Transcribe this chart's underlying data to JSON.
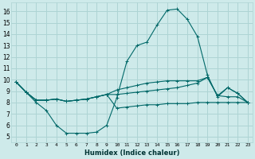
{
  "xlabel": "Humidex (Indice chaleur)",
  "ylabel": "",
  "bg_color": "#ceeaea",
  "grid_color": "#aed4d4",
  "line_color": "#006868",
  "xlim": [
    -0.5,
    23.5
  ],
  "ylim": [
    4.5,
    16.8
  ],
  "xticks": [
    0,
    1,
    2,
    3,
    4,
    5,
    6,
    7,
    8,
    9,
    10,
    11,
    12,
    13,
    14,
    15,
    16,
    17,
    18,
    19,
    20,
    21,
    22,
    23
  ],
  "yticks": [
    5,
    6,
    7,
    8,
    9,
    10,
    11,
    12,
    13,
    14,
    15,
    16
  ],
  "series": [
    [
      9.8,
      8.9,
      8.0,
      7.3,
      6.0,
      5.3,
      5.3,
      5.3,
      5.4,
      6.0,
      8.4,
      11.6,
      13.0,
      13.3,
      14.8,
      16.1,
      16.2,
      15.3,
      13.8,
      10.4,
      8.5,
      9.3,
      8.8,
      8.0
    ],
    [
      9.8,
      8.9,
      8.2,
      8.2,
      8.3,
      8.1,
      8.2,
      8.3,
      8.5,
      8.7,
      9.1,
      9.3,
      9.5,
      9.7,
      9.8,
      9.9,
      9.9,
      9.9,
      9.9,
      10.2,
      8.6,
      9.3,
      8.8,
      8.0
    ],
    [
      9.8,
      8.9,
      8.2,
      8.2,
      8.3,
      8.1,
      8.2,
      8.3,
      8.5,
      8.7,
      8.7,
      8.8,
      8.9,
      9.0,
      9.1,
      9.2,
      9.3,
      9.5,
      9.7,
      10.2,
      8.6,
      8.5,
      8.5,
      8.0
    ],
    [
      9.8,
      8.9,
      8.2,
      8.2,
      8.3,
      8.1,
      8.2,
      8.3,
      8.5,
      8.7,
      7.5,
      7.6,
      7.7,
      7.8,
      7.8,
      7.9,
      7.9,
      7.9,
      8.0,
      8.0,
      8.0,
      8.0,
      8.0,
      8.0
    ]
  ]
}
